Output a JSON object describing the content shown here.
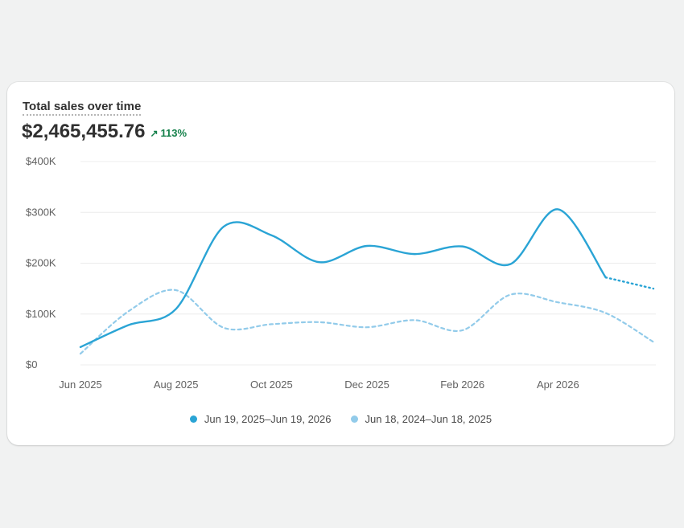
{
  "card": {
    "title": "Total sales over time",
    "total": "$2,465,455.76",
    "delta": "113%",
    "delta_icon": "arrow-up-right-icon"
  },
  "colors": {
    "current": "#2aa4d5",
    "previous": "#92cbea",
    "grid": "#ececec",
    "tick": "#616161",
    "positive": "#14804a"
  },
  "chart_data": {
    "type": "line",
    "x_ticks": [
      "Jun 2025",
      "Aug 2025",
      "Oct 2025",
      "Dec 2025",
      "Feb 2026",
      "Apr 2026"
    ],
    "y_ticks": [
      "$0",
      "$100K",
      "$200K",
      "$300K",
      "$400K"
    ],
    "ylim": [
      0,
      400000
    ],
    "grid": true,
    "legend_placement": "bottom-center",
    "series": [
      {
        "name": "Jun 19, 2025–Jun 19, 2026",
        "style": "solid",
        "projected_after": "May 2026",
        "points": [
          {
            "x": "Jun 2025",
            "y": 35000
          },
          {
            "x": "Jul 2025",
            "y": 78000
          },
          {
            "x": "Aug 2025",
            "y": 110000
          },
          {
            "x": "Sep 2025",
            "y": 272000
          },
          {
            "x": "Oct 2025",
            "y": 255000
          },
          {
            "x": "Nov 2025",
            "y": 202000
          },
          {
            "x": "Dec 2025",
            "y": 234000
          },
          {
            "x": "Jan 2026",
            "y": 218000
          },
          {
            "x": "Feb 2026",
            "y": 233000
          },
          {
            "x": "Mar 2026",
            "y": 198000
          },
          {
            "x": "Apr 2026",
            "y": 306000
          },
          {
            "x": "May 2026",
            "y": 172000
          },
          {
            "x": "Jun 2026",
            "y": 150000
          }
        ]
      },
      {
        "name": "Jun 18, 2024–Jun 18, 2025",
        "style": "dashed",
        "points": [
          {
            "x": "Jun 2025",
            "y": 22000
          },
          {
            "x": "Jul 2025",
            "y": 105000
          },
          {
            "x": "Aug 2025",
            "y": 147000
          },
          {
            "x": "Sep 2025",
            "y": 73000
          },
          {
            "x": "Oct 2025",
            "y": 80000
          },
          {
            "x": "Nov 2025",
            "y": 84000
          },
          {
            "x": "Dec 2025",
            "y": 74000
          },
          {
            "x": "Jan 2026",
            "y": 88000
          },
          {
            "x": "Feb 2026",
            "y": 68000
          },
          {
            "x": "Mar 2026",
            "y": 138000
          },
          {
            "x": "Apr 2026",
            "y": 123000
          },
          {
            "x": "May 2026",
            "y": 102000
          },
          {
            "x": "Jun 2026",
            "y": 45000
          }
        ]
      }
    ]
  }
}
